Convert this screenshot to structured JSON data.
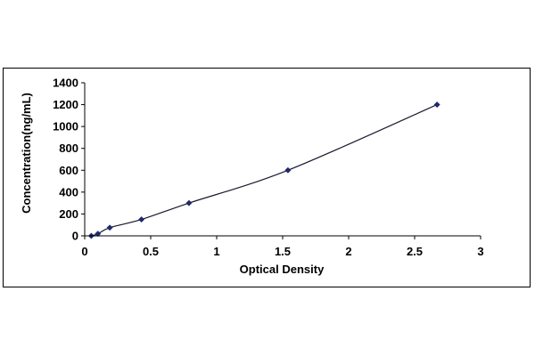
{
  "chart_data": {
    "type": "scatter",
    "title": "",
    "xlabel": "Optical Density",
    "ylabel": "Concentration(ng/mL)",
    "xlim": [
      0,
      3
    ],
    "ylim": [
      0,
      1400
    ],
    "x_ticks": [
      "0",
      "0.5",
      "1",
      "1.5",
      "2",
      "2.5",
      "3"
    ],
    "y_ticks": [
      "0",
      "200",
      "400",
      "600",
      "800",
      "1000",
      "1200",
      "1400"
    ],
    "grid": false,
    "legend": "none",
    "series": [
      {
        "marker": "diamond",
        "color": "#1f2a6b",
        "trendline": "smooth curve",
        "points": [
          {
            "x": 0.05,
            "y": 0
          },
          {
            "x": 0.1,
            "y": 19
          },
          {
            "x": 0.19,
            "y": 75
          },
          {
            "x": 0.43,
            "y": 150
          },
          {
            "x": 0.79,
            "y": 300
          },
          {
            "x": 1.54,
            "y": 600
          },
          {
            "x": 2.67,
            "y": 1200
          }
        ]
      }
    ]
  }
}
